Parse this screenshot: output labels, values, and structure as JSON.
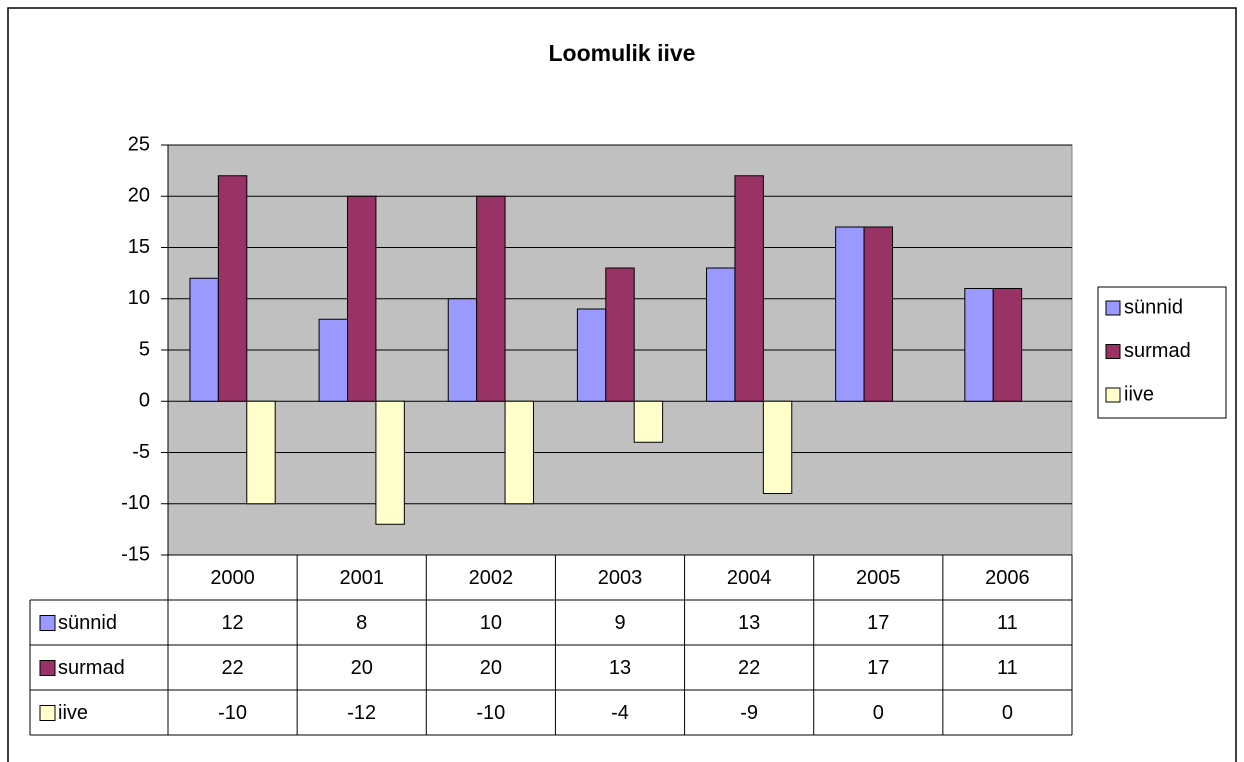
{
  "chart_data": {
    "type": "bar",
    "title": "Loomulik iive",
    "categories": [
      "2000",
      "2001",
      "2002",
      "2003",
      "2004",
      "2005",
      "2006"
    ],
    "series": [
      {
        "name": "sünnid",
        "color": "#9999ff",
        "values": [
          12,
          8,
          10,
          9,
          13,
          17,
          11
        ]
      },
      {
        "name": "surmad",
        "color": "#993366",
        "values": [
          22,
          20,
          20,
          13,
          22,
          17,
          11
        ]
      },
      {
        "name": "iive",
        "color": "#ffffcc",
        "values": [
          -10,
          -12,
          -10,
          -4,
          -9,
          0,
          0
        ]
      }
    ],
    "ylim": [
      -15,
      25
    ],
    "yticks": [
      -15,
      -10,
      -5,
      0,
      5,
      10,
      15,
      20,
      25
    ],
    "grid": true,
    "legend": "right",
    "data_table": true
  }
}
